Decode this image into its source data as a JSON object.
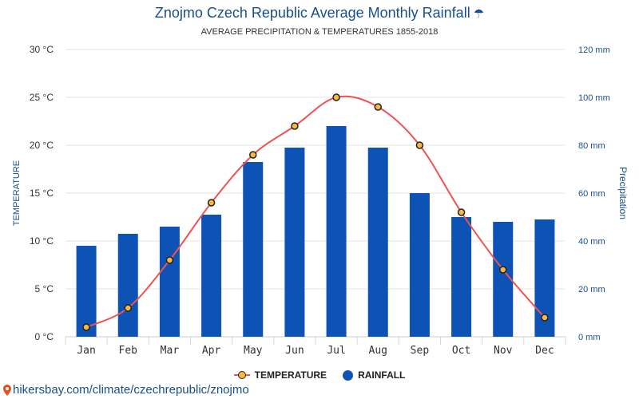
{
  "title": "Znojmo Czech Republic Average Monthly Rainfall",
  "subtitle": "AVERAGE PRECIPITATION & TEMPERATURES 1855-2018",
  "umbrella_icon": "umbrella-icon",
  "legend": {
    "temperature": "TEMPERATURE",
    "rainfall": "RAINFALL"
  },
  "footer_link": "hikersbay.com/climate/czechrepublic/znojmo",
  "colors": {
    "bars": "#0d52b5",
    "line": "#ef5350",
    "marker_fill": "#f9b840",
    "title": "#1a4f8b"
  },
  "chart_data": {
    "type": "bar",
    "categories": [
      "Jan",
      "Feb",
      "Mar",
      "Apr",
      "May",
      "Jun",
      "Jul",
      "Aug",
      "Sep",
      "Oct",
      "Nov",
      "Dec"
    ],
    "series": [
      {
        "name": "RAINFALL",
        "type": "bar",
        "axis": "right",
        "values": [
          38,
          43,
          46,
          51,
          73,
          79,
          88,
          79,
          60,
          50,
          48,
          49
        ]
      },
      {
        "name": "TEMPERATURE",
        "type": "line",
        "axis": "left",
        "values": [
          1,
          3,
          8,
          14,
          19,
          22,
          25,
          24,
          20,
          13,
          7,
          2
        ]
      }
    ],
    "ylabel_left": "TEMPERATURE",
    "ylabel_right": "Precipitation",
    "ylim_left": [
      0,
      30
    ],
    "ylim_right": [
      0,
      120
    ],
    "yticks_left": [
      "0 °C",
      "5 °C",
      "10 °C",
      "15 °C",
      "20 °C",
      "25 °C",
      "30 °C"
    ],
    "yticks_right": [
      "0 mm",
      "20 mm",
      "40 mm",
      "60 mm",
      "80 mm",
      "100 mm",
      "120 mm"
    ],
    "grid": true
  }
}
